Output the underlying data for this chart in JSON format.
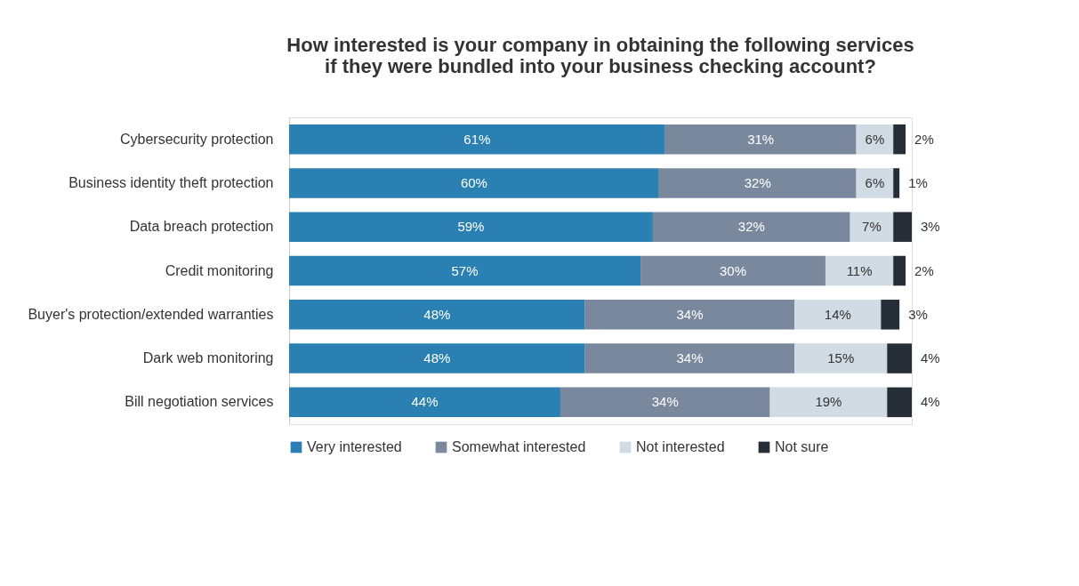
{
  "chart_data": {
    "type": "bar",
    "orientation": "horizontal",
    "stacked": true,
    "legend": "bottom",
    "grid": false,
    "title": "How interested is your company in obtaining the following services\nif they were bundled into your business checking account?",
    "categories": [
      "Cybersecurity protection",
      "Business identity theft protection",
      "Data breach protection",
      "Credit monitoring",
      "Buyer's protection/extended warranties",
      "Dark web monitoring",
      "Bill negotiation services"
    ],
    "series": [
      {
        "name": "Very interested",
        "color": "#2a80b2",
        "values": [
          61,
          60,
          59,
          57,
          48,
          48,
          44
        ],
        "value_labels": [
          "61%",
          "60%",
          "59%",
          "57%",
          "48%",
          "48%",
          "44%"
        ]
      },
      {
        "name": "Somewhat interested",
        "color": "#7a889d",
        "values": [
          31,
          32,
          32,
          30,
          34,
          34,
          34
        ],
        "value_labels": [
          "31%",
          "32%",
          "32%",
          "30%",
          "34%",
          "34%",
          "34%"
        ]
      },
      {
        "name": "Not interested",
        "color": "#d0dbe3",
        "values": [
          6,
          6,
          7,
          11,
          14,
          15,
          19
        ],
        "value_labels": [
          "6%",
          "6%",
          "7%",
          "11%",
          "14%",
          "15%",
          "19%"
        ]
      },
      {
        "name": "Not sure",
        "color": "#252d36",
        "values": [
          2,
          1,
          3,
          2,
          3,
          4,
          4
        ],
        "value_labels": [
          "2%",
          "1%",
          "3%",
          "2%",
          "3%",
          "4%",
          "4%"
        ]
      }
    ]
  }
}
